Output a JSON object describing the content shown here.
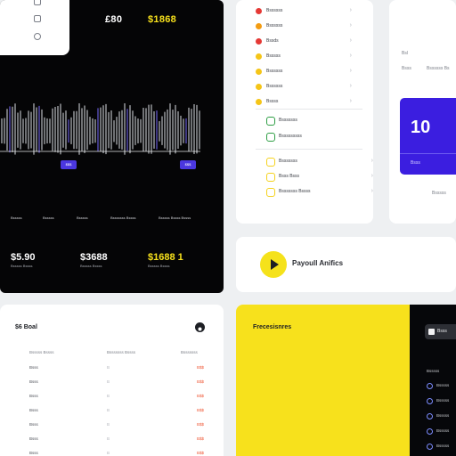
{
  "dashboard": {
    "stat_a": "£80",
    "stat_b": "$1868",
    "wave_tags": [
      "$$$",
      "$$$"
    ],
    "axis_labels": [
      "Bsssss",
      "Bsssss",
      "Bsssss",
      "Bsssssss Bssss",
      "Bsssss Bssss Bssss"
    ],
    "big_stats": [
      {
        "value": "$5.90",
        "sub": "Bsssss Bssss"
      },
      {
        "value": "$3688",
        "sub": "Bsssss Bssss"
      },
      {
        "value": "$1688 1",
        "sub": "Bsssss Bssss"
      }
    ]
  },
  "list": {
    "items": [
      {
        "label": "Bssssss",
        "color": "#e53935"
      },
      {
        "label": "Bssssss",
        "color": "#f39c12"
      },
      {
        "label": "Bssds",
        "color": "#e53935"
      },
      {
        "label": "Bsssss",
        "color": "#f5c518"
      },
      {
        "label": "Bssssss",
        "color": "#f5c518"
      },
      {
        "label": "Bssssss",
        "color": "#f5c518"
      },
      {
        "label": "Bssss",
        "color": "#f5c518"
      }
    ],
    "group_a": [
      {
        "label": "Bsssssss",
        "color": "#2e9e44"
      },
      {
        "label": "Bsssssssss",
        "color": "#2e9e44"
      }
    ],
    "group_b": [
      {
        "label": "Bsssssss",
        "color": "#f5d21c"
      },
      {
        "label": "Bsss Bsss",
        "color": "#f5d21c"
      },
      {
        "label": "Bsssssss Bssss",
        "color": "#f5d21c"
      }
    ]
  },
  "metric": {
    "label": "Bsl",
    "caption_a": "Bsss",
    "caption_b": "Bssssss Bs",
    "value": "10",
    "foot_a": "Bsss",
    "foot_b": "Bsssss"
  },
  "payout": {
    "title": "Payoull Anifics"
  },
  "table": {
    "title": "$6 Boal",
    "headers": [
      "Bsssss Bssss",
      "Bsssssss Bssss",
      "Bsssssss"
    ],
    "rows": [
      {
        "name": "Bsss",
        "mid": "B",
        "val": "B$$"
      },
      {
        "name": "Bsss",
        "mid": "B",
        "val": "B$$"
      },
      {
        "name": "Bsss",
        "mid": "B",
        "val": "B$$"
      },
      {
        "name": "Bsss",
        "mid": "B",
        "val": "B$$"
      },
      {
        "name": "Bsss",
        "mid": "B",
        "val": "B$$"
      },
      {
        "name": "Bsss",
        "mid": "B",
        "val": "B$$"
      },
      {
        "name": "Bsss",
        "mid": "B",
        "val": "B$$"
      }
    ]
  },
  "yellow": {
    "title": "Frecesisnres"
  },
  "side": {
    "tab": "Bsss",
    "items": [
      "Bsssss",
      "Bsssss",
      "Bsssss",
      "Bsssss",
      "Bsssss",
      "Bsssss"
    ]
  },
  "icons": {
    "options": "more-icon",
    "play": "play-icon"
  }
}
